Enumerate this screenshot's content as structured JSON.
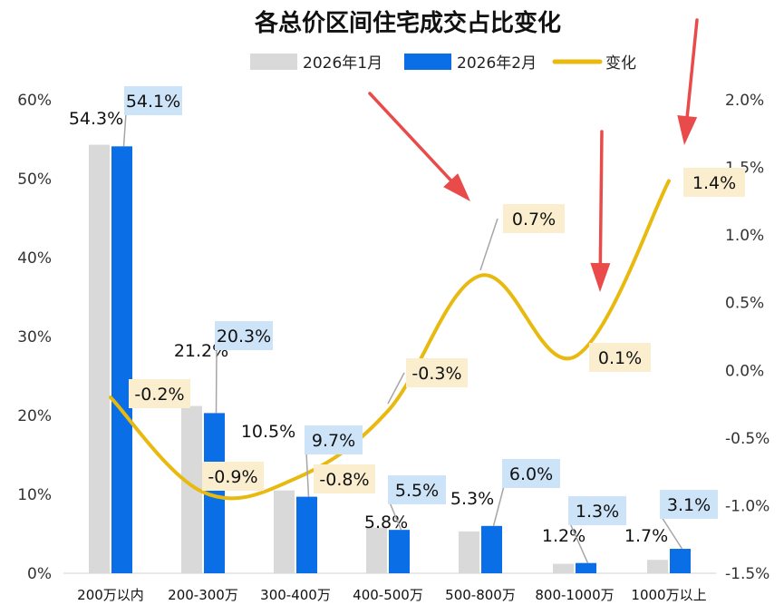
{
  "chart_data": {
    "type": "bar",
    "title": "各总价区间住宅成交占比变化",
    "categories": [
      "200万以内",
      "200-300万",
      "300-400万",
      "400-500万",
      "500-800万",
      "800-1000万",
      "1000万以上"
    ],
    "series": [
      {
        "name": "2026年1月",
        "type": "bar",
        "axis": "left",
        "color": "#d9d9d9",
        "values": [
          54.3,
          21.2,
          10.5,
          5.8,
          5.3,
          1.2,
          1.7
        ],
        "labels": [
          "54.3%",
          "21.2%",
          "10.5%",
          "5.8%",
          "5.3%",
          "1.2%",
          "1.7%"
        ]
      },
      {
        "name": "2026年2月",
        "type": "bar",
        "axis": "left",
        "color": "#0a6ee6",
        "values": [
          54.1,
          20.3,
          9.7,
          5.5,
          6.0,
          1.3,
          3.1
        ],
        "labels": [
          "54.1%",
          "20.3%",
          "9.7%",
          "5.5%",
          "6.0%",
          "1.3%",
          "3.1%"
        ]
      },
      {
        "name": "变化",
        "type": "line",
        "axis": "right",
        "color": "#e8b90f",
        "values": [
          -0.2,
          -0.9,
          -0.8,
          -0.3,
          0.7,
          0.1,
          1.4
        ],
        "labels": [
          "-0.2%",
          "-0.9%",
          "-0.8%",
          "-0.3%",
          "0.7%",
          "0.1%",
          "1.4%"
        ]
      }
    ],
    "y_left": {
      "range": [
        0,
        60
      ],
      "ticks": [
        0,
        10,
        20,
        30,
        40,
        50,
        60
      ],
      "tick_labels": [
        "0%",
        "10%",
        "20%",
        "30%",
        "40%",
        "50%",
        "60%"
      ]
    },
    "y_right": {
      "range": [
        -1.5,
        2.0
      ],
      "ticks": [
        -1.5,
        -1.0,
        -0.5,
        0.0,
        0.5,
        1.0,
        1.5,
        2.0
      ],
      "tick_labels": [
        "-1.5%",
        "-1.0%",
        "-0.5%",
        "0.0%",
        "0.5%",
        "1.0%",
        "1.5%",
        "2.0%"
      ]
    },
    "grid": false,
    "legend_position": "top-center",
    "annotations": [
      "red arrow",
      "red arrow",
      "red arrow"
    ],
    "colors": {
      "label_bg_blue": "#cde3f8",
      "label_bg_gold": "#fbeecf",
      "leader": "#a6a6a6",
      "arrow": "#e94b4b",
      "axis_text": "#333333"
    }
  }
}
